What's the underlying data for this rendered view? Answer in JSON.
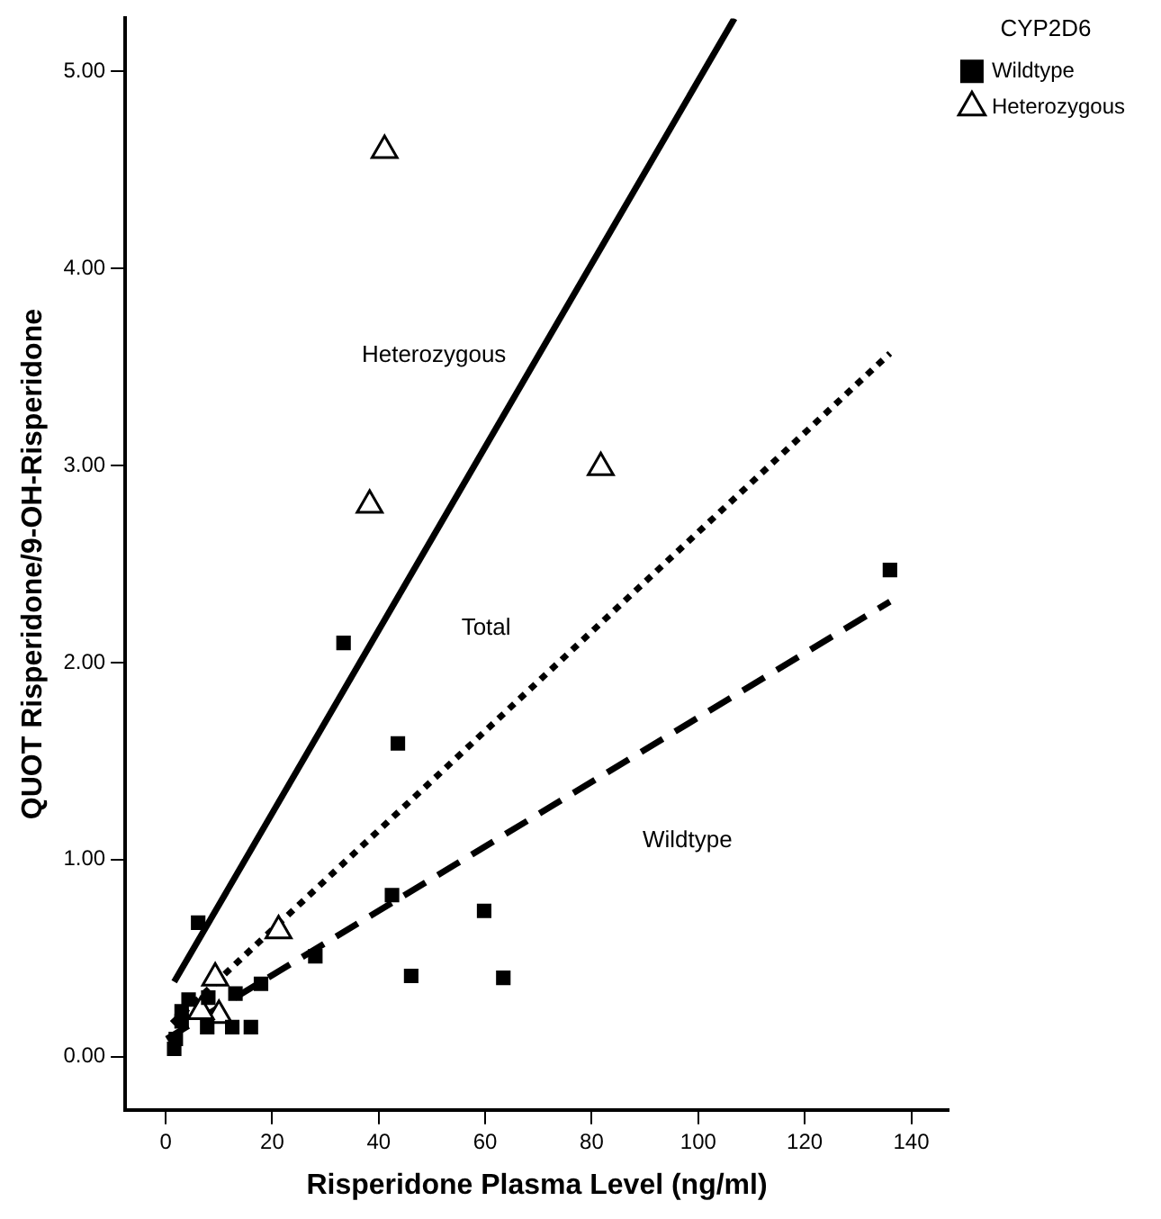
{
  "chart_data": {
    "type": "scatter",
    "xlabel": "Risperidone Plasma Level (ng/ml)",
    "ylabel": "QUOT Risperidone/9-OH-Risperidone",
    "legend_title": "CYP2D6",
    "legend": "top right",
    "grid": false,
    "xlim": [
      -7.6,
      147
    ],
    "xticks": [
      0,
      20,
      40,
      60,
      80,
      100,
      120,
      140
    ],
    "ylim": [
      -0.27,
      5.27
    ],
    "yticks": [
      {
        "value": 0,
        "label": "0.00"
      },
      {
        "value": 1,
        "label": "1.00"
      },
      {
        "value": 2,
        "label": "2.00"
      },
      {
        "value": 3,
        "label": "3.00"
      },
      {
        "value": 4,
        "label": "4.00"
      },
      {
        "value": 5,
        "label": "5.00"
      }
    ],
    "series": [
      {
        "name": "Wildtype",
        "marker": "square",
        "color": "#000000",
        "x": [
          33.4,
          43.6,
          42.5,
          59.8,
          46.1,
          63.4,
          136,
          28.1,
          6.1,
          17.9,
          13.1,
          16.0,
          12.5,
          7.8,
          3.0,
          1.9,
          1.6,
          3.0,
          4.3,
          8.0
        ],
        "values": [
          2.1,
          1.59,
          0.82,
          0.74,
          0.41,
          0.4,
          2.47,
          0.51,
          0.68,
          0.37,
          0.32,
          0.15,
          0.15,
          0.15,
          0.23,
          0.09,
          0.04,
          0.18,
          0.29,
          0.3
        ]
      },
      {
        "name": "Heterozygous",
        "marker": "triangle",
        "color": "#000000",
        "x": [
          41.1,
          38.3,
          81.7,
          21.2,
          10.0,
          6.6,
          9.3
        ],
        "values": [
          4.6,
          2.8,
          2.99,
          0.64,
          0.21,
          0.23,
          0.4
        ]
      },
      {
        "name": "Heterozygous",
        "type": "line",
        "marker": "none",
        "line_style": "solid",
        "color": "#000000",
        "x": [
          1.6,
          106.8
        ],
        "values": [
          0.38,
          5.27
        ]
      },
      {
        "name": "Total",
        "type": "line",
        "marker": "none",
        "line_style": "dotted",
        "color": "#000000",
        "x": [
          1.2,
          136
        ],
        "values": [
          0.17,
          3.57
        ]
      },
      {
        "name": "Wildtype",
        "type": "line",
        "marker": "none",
        "line_style": "dashed",
        "color": "#000000",
        "x": [
          0.2,
          136
        ],
        "values": [
          0.09,
          2.31
        ]
      }
    ]
  }
}
